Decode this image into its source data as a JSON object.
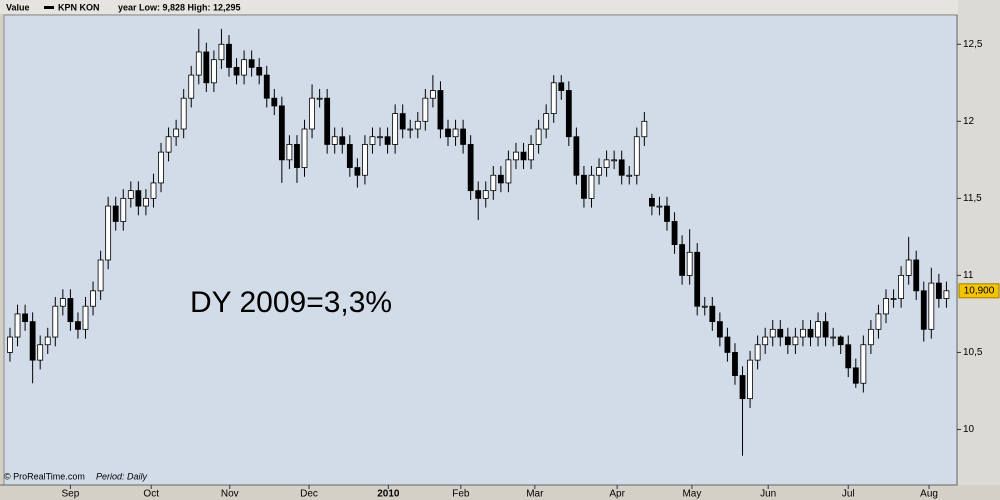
{
  "chart_data": {
    "type": "candlestick",
    "axis_title": "Value",
    "title": "KPN KON",
    "subtitle": "year Low: 9,828 High: 12,295",
    "annotation": "DY 2009=3,3%",
    "footer": "© ProRealTime.com",
    "period_label": "Period: Daily",
    "up_color": "#ffffff",
    "down_color": "#000000",
    "series_color": "#000000",
    "background": "#d1dce8",
    "categories": [
      null,
      null,
      null,
      null,
      null,
      null,
      null,
      null,
      null,
      null,
      null,
      null,
      null,
      null,
      null,
      null,
      null,
      null,
      null,
      null,
      null,
      null,
      null,
      null,
      null,
      null,
      null,
      null,
      null,
      null,
      null,
      null,
      null,
      null,
      null,
      null,
      null,
      null,
      null,
      null,
      null,
      null,
      null,
      null,
      null,
      null,
      null,
      null,
      null,
      null,
      null,
      null,
      null,
      null,
      null,
      null,
      null,
      null,
      null,
      null,
      null,
      null,
      null,
      null,
      null,
      null,
      null,
      null,
      null,
      null,
      null,
      null,
      null,
      null,
      null,
      null,
      null,
      null,
      null,
      null,
      null,
      null,
      null,
      null,
      null,
      null,
      null,
      null,
      null,
      null,
      null,
      null,
      null,
      null,
      null,
      null,
      null,
      null,
      null,
      null,
      null,
      null,
      null,
      null,
      null,
      null,
      null,
      null,
      null,
      null,
      null,
      null,
      null,
      null,
      null,
      null,
      null,
      null,
      null,
      null,
      null,
      null,
      null,
      null,
      null
    ],
    "open": [
      10.5,
      10.6,
      10.75,
      10.7,
      10.45,
      10.55,
      10.6,
      10.8,
      10.85,
      10.7,
      10.65,
      10.8,
      10.9,
      11.1,
      11.45,
      11.35,
      11.5,
      11.55,
      11.45,
      11.5,
      11.6,
      11.8,
      11.9,
      11.95,
      12.15,
      12.3,
      12.45,
      12.25,
      12.4,
      12.5,
      12.35,
      12.3,
      12.4,
      12.35,
      12.3,
      12.15,
      12.1,
      11.75,
      11.85,
      11.7,
      11.95,
      12.15,
      12.15,
      11.85,
      11.9,
      11.85,
      11.7,
      11.65,
      11.85,
      11.9,
      11.9,
      11.85,
      12.05,
      11.95,
      11.95,
      12.0,
      12.15,
      12.2,
      11.95,
      11.9,
      11.95,
      11.85,
      11.55,
      11.5,
      11.55,
      11.65,
      11.6,
      11.75,
      11.8,
      11.75,
      11.85,
      11.95,
      12.05,
      12.25,
      12.2,
      11.9,
      11.65,
      11.5,
      11.65,
      11.7,
      11.75,
      11.75,
      11.65,
      11.65,
      11.9,
      11.5,
      11.45,
      11.45,
      11.35,
      11.2,
      11.0,
      11.15,
      10.8,
      10.8,
      10.7,
      10.6,
      10.5,
      10.35,
      10.2,
      10.45,
      10.55,
      10.6,
      10.65,
      10.6,
      10.55,
      10.6,
      10.65,
      10.6,
      10.7,
      10.6,
      10.6,
      10.55,
      10.4,
      10.3,
      10.55,
      10.65,
      10.75,
      10.85,
      10.85,
      11.0,
      11.1,
      10.9,
      10.65,
      10.95,
      10.85
    ],
    "high": [
      10.66,
      10.81,
      10.81,
      10.76,
      10.61,
      10.66,
      10.86,
      10.91,
      10.91,
      10.76,
      10.86,
      10.96,
      11.16,
      11.51,
      11.51,
      11.56,
      11.61,
      11.61,
      11.56,
      11.66,
      11.86,
      11.96,
      12.01,
      12.21,
      12.36,
      12.6,
      12.51,
      12.46,
      12.6,
      12.56,
      12.41,
      12.46,
      12.46,
      12.41,
      12.36,
      12.21,
      12.16,
      11.91,
      11.91,
      12.01,
      12.24,
      12.21,
      12.21,
      11.96,
      11.96,
      11.91,
      11.76,
      11.91,
      11.96,
      11.96,
      11.96,
      12.11,
      12.11,
      12.01,
      12.06,
      12.21,
      12.3,
      12.26,
      12.01,
      12.01,
      12.01,
      11.91,
      11.61,
      11.61,
      11.71,
      11.71,
      11.81,
      11.86,
      11.86,
      11.91,
      12.01,
      12.11,
      12.3,
      12.3,
      12.26,
      11.96,
      11.71,
      11.71,
      11.76,
      11.81,
      11.81,
      11.81,
      11.71,
      11.96,
      12.06,
      11.53,
      11.51,
      11.51,
      11.41,
      11.26,
      11.3,
      11.21,
      10.86,
      10.86,
      10.76,
      10.66,
      10.56,
      10.41,
      10.51,
      10.61,
      10.66,
      10.71,
      10.71,
      10.66,
      10.66,
      10.71,
      10.71,
      10.76,
      10.76,
      10.66,
      10.61,
      10.61,
      10.46,
      10.61,
      10.71,
      10.81,
      10.91,
      10.91,
      11.06,
      11.25,
      11.16,
      10.96,
      11.05,
      11.01,
      10.96
    ],
    "low": [
      10.44,
      10.54,
      10.64,
      10.3,
      10.39,
      10.49,
      10.54,
      10.74,
      10.64,
      10.59,
      10.59,
      10.74,
      10.84,
      11.04,
      11.29,
      11.29,
      11.44,
      11.39,
      11.39,
      11.44,
      11.54,
      11.74,
      11.84,
      11.89,
      12.09,
      12.24,
      12.19,
      12.19,
      12.34,
      12.29,
      12.24,
      12.24,
      12.29,
      12.24,
      12.09,
      12.04,
      11.6,
      11.69,
      11.6,
      11.64,
      11.89,
      12.09,
      11.79,
      11.79,
      11.79,
      11.64,
      11.57,
      11.59,
      11.79,
      11.84,
      11.79,
      11.79,
      11.89,
      11.89,
      11.89,
      11.94,
      12.09,
      11.89,
      11.84,
      11.84,
      11.79,
      11.49,
      11.36,
      11.44,
      11.49,
      11.54,
      11.54,
      11.69,
      11.69,
      11.69,
      11.79,
      11.89,
      11.99,
      12.14,
      11.84,
      11.59,
      11.44,
      11.44,
      11.59,
      11.64,
      11.69,
      11.59,
      11.59,
      11.59,
      11.84,
      11.39,
      11.39,
      11.29,
      11.14,
      10.94,
      10.94,
      10.74,
      10.74,
      10.64,
      10.54,
      10.44,
      10.29,
      9.83,
      10.14,
      10.39,
      10.49,
      10.54,
      10.54,
      10.49,
      10.49,
      10.54,
      10.54,
      10.54,
      10.54,
      10.54,
      10.49,
      10.34,
      10.27,
      10.24,
      10.49,
      10.59,
      10.69,
      10.79,
      10.79,
      10.94,
      10.84,
      10.57,
      10.59,
      10.79,
      10.79
    ],
    "close": [
      10.6,
      10.75,
      10.7,
      10.45,
      10.55,
      10.6,
      10.8,
      10.85,
      10.7,
      10.65,
      10.8,
      10.9,
      11.1,
      11.45,
      11.35,
      11.5,
      11.55,
      11.45,
      11.5,
      11.6,
      11.8,
      11.9,
      11.95,
      12.15,
      12.3,
      12.45,
      12.25,
      12.4,
      12.5,
      12.35,
      12.3,
      12.4,
      12.35,
      12.3,
      12.15,
      12.1,
      11.75,
      11.85,
      11.7,
      11.95,
      12.15,
      12.15,
      11.85,
      11.9,
      11.85,
      11.7,
      11.65,
      11.85,
      11.9,
      11.9,
      11.85,
      12.05,
      11.95,
      11.95,
      12.0,
      12.15,
      12.2,
      11.95,
      11.9,
      11.95,
      11.85,
      11.55,
      11.5,
      11.55,
      11.65,
      11.6,
      11.75,
      11.8,
      11.75,
      11.85,
      11.95,
      12.05,
      12.25,
      12.2,
      11.9,
      11.65,
      11.5,
      11.65,
      11.7,
      11.75,
      11.75,
      11.65,
      11.65,
      11.9,
      12.0,
      11.45,
      11.45,
      11.35,
      11.2,
      11.0,
      11.15,
      10.8,
      10.8,
      10.7,
      10.6,
      10.5,
      10.35,
      10.2,
      10.45,
      10.55,
      10.6,
      10.65,
      10.6,
      10.55,
      10.6,
      10.65,
      10.6,
      10.7,
      10.6,
      10.6,
      10.55,
      10.4,
      10.3,
      10.55,
      10.65,
      10.75,
      10.85,
      10.85,
      11.0,
      11.1,
      10.9,
      10.65,
      10.95,
      10.85,
      10.9
    ],
    "last_price": {
      "value": 10.9,
      "label": "10,900"
    },
    "xlim": [
      -0.66,
      125.4
    ],
    "xticks": [
      {
        "value": 8,
        "label": "Sep"
      },
      {
        "value": 18.7,
        "label": "Oct"
      },
      {
        "value": 29.1,
        "label": "Nov"
      },
      {
        "value": 39.6,
        "label": "Dec"
      },
      {
        "value": 50.1,
        "label": "2010"
      },
      {
        "value": 59.7,
        "label": "Feb"
      },
      {
        "value": 69.5,
        "label": "Mar"
      },
      {
        "value": 80.4,
        "label": "Apr"
      },
      {
        "value": 90.3,
        "label": "May"
      },
      {
        "value": 100.4,
        "label": "Jun"
      },
      {
        "value": 111,
        "label": "Jul"
      },
      {
        "value": 121.7,
        "label": "Aug"
      }
    ],
    "ylim": [
      9.75,
      12.69
    ],
    "yticks": [
      10,
      {
        "value": 10.5,
        "label": "10,5"
      },
      11,
      {
        "value": 11.5,
        "label": "11,5"
      },
      12,
      {
        "value": 12.5,
        "label": "12,5"
      }
    ]
  }
}
